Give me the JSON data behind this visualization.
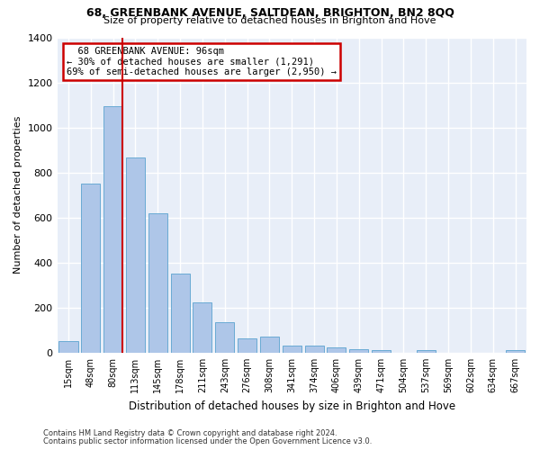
{
  "title": "68, GREENBANK AVENUE, SALTDEAN, BRIGHTON, BN2 8QQ",
  "subtitle": "Size of property relative to detached houses in Brighton and Hove",
  "xlabel": "Distribution of detached houses by size in Brighton and Hove",
  "ylabel": "Number of detached properties",
  "footnote1": "Contains HM Land Registry data © Crown copyright and database right 2024.",
  "footnote2": "Contains public sector information licensed under the Open Government Licence v3.0.",
  "bar_color": "#aec6e8",
  "bar_edge_color": "#6aaad4",
  "background_color": "#e8eef8",
  "grid_color": "#ffffff",
  "categories": [
    "15sqm",
    "48sqm",
    "80sqm",
    "113sqm",
    "145sqm",
    "178sqm",
    "211sqm",
    "243sqm",
    "276sqm",
    "308sqm",
    "341sqm",
    "374sqm",
    "406sqm",
    "439sqm",
    "471sqm",
    "504sqm",
    "537sqm",
    "569sqm",
    "602sqm",
    "634sqm",
    "667sqm"
  ],
  "values": [
    50,
    750,
    1095,
    865,
    620,
    350,
    225,
    135,
    65,
    70,
    30,
    30,
    22,
    15,
    12,
    0,
    12,
    0,
    0,
    0,
    12
  ],
  "ylim": [
    0,
    1400
  ],
  "yticks": [
    0,
    200,
    400,
    600,
    800,
    1000,
    1200,
    1400
  ],
  "property_label": "68 GREENBANK AVENUE: 96sqm",
  "pct_smaller": "30% of detached houses are smaller (1,291)",
  "pct_larger": "69% of semi-detached houses are larger (2,950)",
  "redline_bar_index": 2,
  "annotation_box_color": "#cc0000",
  "redline_color": "#cc0000"
}
